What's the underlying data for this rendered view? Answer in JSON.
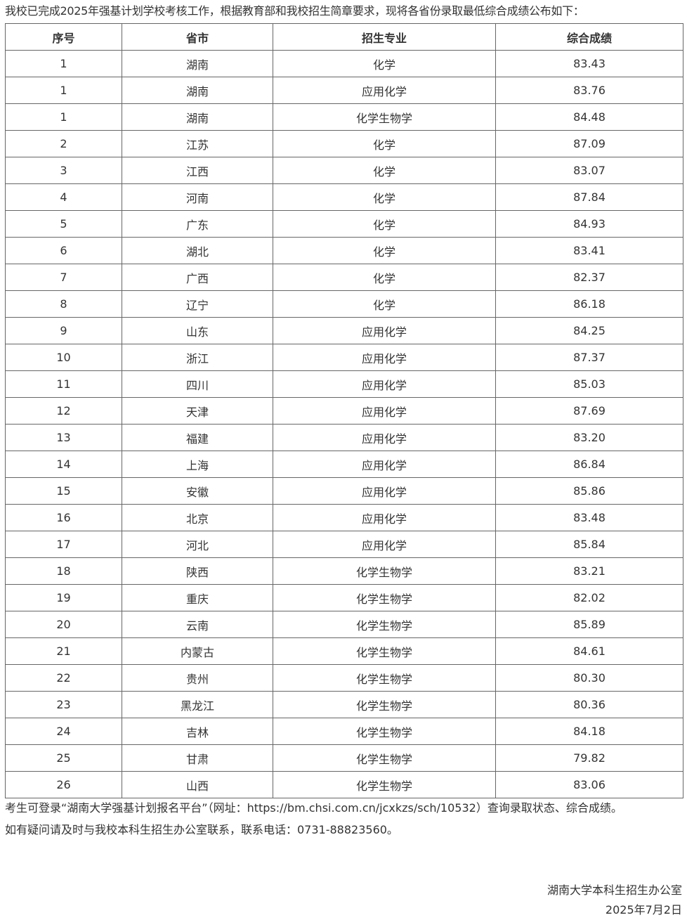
{
  "intro": "我校已完成2025年强基计划学校考核工作，根据教育部和我校招生简章要求，现将各省份录取最低综合成绩公布如下：",
  "table": {
    "headers": [
      "序号",
      "省市",
      "招生专业",
      "综合成绩"
    ],
    "rows": [
      [
        "1",
        "湖南",
        "化学",
        "83.43"
      ],
      [
        "1",
        "湖南",
        "应用化学",
        "83.76"
      ],
      [
        "1",
        "湖南",
        "化学生物学",
        "84.48"
      ],
      [
        "2",
        "江苏",
        "化学",
        "87.09"
      ],
      [
        "3",
        "江西",
        "化学",
        "83.07"
      ],
      [
        "4",
        "河南",
        "化学",
        "87.84"
      ],
      [
        "5",
        "广东",
        "化学",
        "84.93"
      ],
      [
        "6",
        "湖北",
        "化学",
        "83.41"
      ],
      [
        "7",
        "广西",
        "化学",
        "82.37"
      ],
      [
        "8",
        "辽宁",
        "化学",
        "86.18"
      ],
      [
        "9",
        "山东",
        "应用化学",
        "84.25"
      ],
      [
        "10",
        "浙江",
        "应用化学",
        "87.37"
      ],
      [
        "11",
        "四川",
        "应用化学",
        "85.03"
      ],
      [
        "12",
        "天津",
        "应用化学",
        "87.69"
      ],
      [
        "13",
        "福建",
        "应用化学",
        "83.20"
      ],
      [
        "14",
        "上海",
        "应用化学",
        "86.84"
      ],
      [
        "15",
        "安徽",
        "应用化学",
        "85.86"
      ],
      [
        "16",
        "北京",
        "应用化学",
        "83.48"
      ],
      [
        "17",
        "河北",
        "应用化学",
        "85.84"
      ],
      [
        "18",
        "陕西",
        "化学生物学",
        "83.21"
      ],
      [
        "19",
        "重庆",
        "化学生物学",
        "82.02"
      ],
      [
        "20",
        "云南",
        "化学生物学",
        "85.89"
      ],
      [
        "21",
        "内蒙古",
        "化学生物学",
        "84.61"
      ],
      [
        "22",
        "贵州",
        "化学生物学",
        "80.30"
      ],
      [
        "23",
        "黑龙江",
        "化学生物学",
        "80.36"
      ],
      [
        "24",
        "吉林",
        "化学生物学",
        "84.18"
      ],
      [
        "25",
        "甘肃",
        "化学生物学",
        "79.82"
      ],
      [
        "26",
        "山西",
        "化学生物学",
        "83.06"
      ]
    ]
  },
  "notes": {
    "line1": "考生可登录“湖南大学强基计划报名平台”（网址：https://bm.chsi.com.cn/jcxkzs/sch/10532）查询录取状态、综合成绩。",
    "line2": "如有疑问请及时与我校本科生招生办公室联系，联系电话：0731-88823560。"
  },
  "signature": {
    "office": "湖南大学本科生招生办公室",
    "date": "2025年7月2日"
  }
}
